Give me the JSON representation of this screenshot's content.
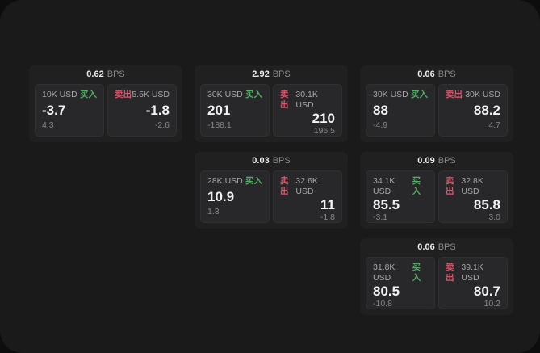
{
  "page": {
    "outer_background": "#0d0d0d",
    "surface_background": "#1a1a1b"
  },
  "colors": {
    "buy_green": "#50ad64",
    "sell_red": "#d8566b",
    "card_bg": "#202021",
    "panel_bg": "#28282a",
    "value_white": "#f2f2f2",
    "muted_gray": "#8b8b8b"
  },
  "labels": {
    "bps_unit": "BPS",
    "buy": "买入",
    "sell": "卖出"
  },
  "cards": [
    {
      "bps": "0.62",
      "buy": {
        "size": "10K USD",
        "price": "-3.7",
        "delta": "4.3"
      },
      "sell": {
        "size": "5.5K USD",
        "price": "-1.8",
        "delta": "-2.6"
      }
    },
    {
      "bps": "2.92",
      "buy": {
        "size": "30K USD",
        "price": "201",
        "delta": "-188.1"
      },
      "sell": {
        "size": "30.1K USD",
        "price": "210",
        "delta": "196.5"
      }
    },
    {
      "bps": "0.06",
      "buy": {
        "size": "30K USD",
        "price": "88",
        "delta": "-4.9"
      },
      "sell": {
        "size": "30K USD",
        "price": "88.2",
        "delta": "4.7"
      }
    },
    {
      "bps": "0.03",
      "buy": {
        "size": "28K USD",
        "price": "10.9",
        "delta": "1.3"
      },
      "sell": {
        "size": "32.6K USD",
        "price": "11",
        "delta": "-1.8"
      }
    },
    {
      "bps": "0.09",
      "buy": {
        "size": "34.1K USD",
        "price": "85.5",
        "delta": "-3.1"
      },
      "sell": {
        "size": "32.8K USD",
        "price": "85.8",
        "delta": "3.0"
      }
    },
    {
      "bps": "0.06",
      "buy": {
        "size": "31.8K USD",
        "price": "80.5",
        "delta": "-10.8"
      },
      "sell": {
        "size": "39.1K USD",
        "price": "80.7",
        "delta": "10.2"
      }
    }
  ]
}
